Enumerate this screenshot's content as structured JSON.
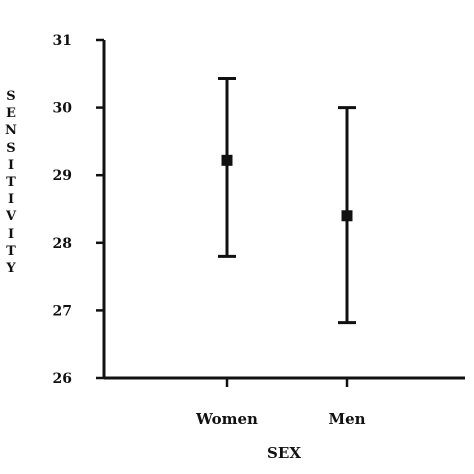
{
  "chart_data": {
    "type": "scatter",
    "title": "",
    "xlabel": "SEX",
    "ylabel": "SENSITIVITY",
    "categories": [
      "Women",
      "Men"
    ],
    "series": [
      {
        "values": [
          29.22,
          28.4
        ],
        "error_low": [
          27.8,
          26.82
        ],
        "error_high": [
          30.43,
          30.0
        ]
      }
    ],
    "ylim": [
      26,
      31
    ],
    "yticks": [
      26,
      27,
      28,
      29,
      30,
      31
    ],
    "grid": false,
    "marker": "square",
    "color": "#111111"
  }
}
